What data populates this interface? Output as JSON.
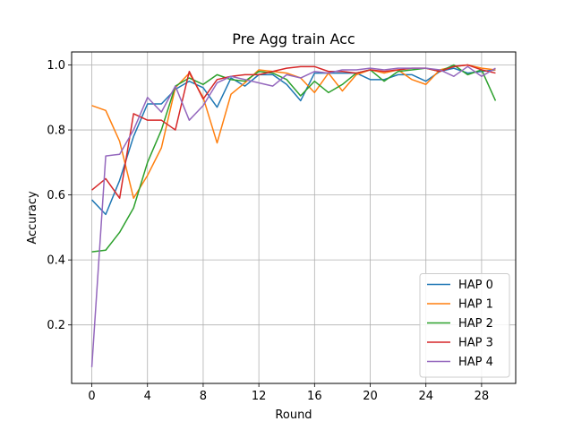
{
  "chart_data": {
    "type": "line",
    "title": "Pre Agg train Acc",
    "xlabel": "Round",
    "ylabel": "Accuracy",
    "xlim": [
      -1.45,
      30.45
    ],
    "ylim": [
      0.02,
      1.04
    ],
    "xticks": [
      0,
      4,
      8,
      12,
      16,
      20,
      24,
      28
    ],
    "yticks": [
      0.2,
      0.4,
      0.6,
      0.8,
      1.0
    ],
    "ytick_labels": [
      "0.2",
      "0.4",
      "0.6",
      "0.8",
      "1.0"
    ],
    "grid": true,
    "legend_position": "lower right",
    "x": [
      0,
      1,
      2,
      3,
      4,
      5,
      6,
      7,
      8,
      9,
      10,
      11,
      12,
      13,
      14,
      15,
      16,
      17,
      18,
      19,
      20,
      21,
      22,
      23,
      24,
      25,
      26,
      27,
      28,
      29
    ],
    "series": [
      {
        "name": "HAP 0",
        "color": "#1f77b4",
        "values": [
          0.585,
          0.54,
          0.645,
          0.78,
          0.88,
          0.88,
          0.925,
          0.95,
          0.93,
          0.87,
          0.96,
          0.935,
          0.97,
          0.97,
          0.94,
          0.89,
          0.975,
          0.975,
          0.975,
          0.975,
          0.955,
          0.955,
          0.97,
          0.97,
          0.95,
          0.98,
          0.99,
          0.975,
          0.98,
          0.985
        ]
      },
      {
        "name": "HAP 1",
        "color": "#ff7f0e",
        "values": [
          0.875,
          0.86,
          0.765,
          0.59,
          0.66,
          0.745,
          0.93,
          0.975,
          0.9,
          0.76,
          0.91,
          0.945,
          0.985,
          0.98,
          0.975,
          0.96,
          0.915,
          0.975,
          0.92,
          0.97,
          0.985,
          0.975,
          0.985,
          0.955,
          0.94,
          0.985,
          0.995,
          1.0,
          0.99,
          0.985
        ]
      },
      {
        "name": "HAP 2",
        "color": "#2ca02c",
        "values": [
          0.425,
          0.43,
          0.485,
          0.56,
          0.7,
          0.8,
          0.935,
          0.96,
          0.94,
          0.97,
          0.955,
          0.95,
          0.98,
          0.975,
          0.955,
          0.905,
          0.95,
          0.915,
          0.94,
          0.975,
          0.985,
          0.95,
          0.98,
          0.985,
          0.99,
          0.98,
          1.0,
          0.97,
          0.985,
          0.89
        ]
      },
      {
        "name": "HAP 3",
        "color": "#d62728",
        "values": [
          0.615,
          0.65,
          0.59,
          0.85,
          0.83,
          0.83,
          0.8,
          0.98,
          0.895,
          0.955,
          0.965,
          0.97,
          0.97,
          0.98,
          0.99,
          0.995,
          0.995,
          0.98,
          0.98,
          0.975,
          0.985,
          0.98,
          0.985,
          0.99,
          0.99,
          0.98,
          0.995,
          1.0,
          0.985,
          0.975
        ]
      },
      {
        "name": "HAP 4",
        "color": "#9467bd",
        "values": [
          0.07,
          0.72,
          0.725,
          0.8,
          0.9,
          0.855,
          0.935,
          0.83,
          0.875,
          0.945,
          0.965,
          0.955,
          0.945,
          0.935,
          0.97,
          0.96,
          0.98,
          0.975,
          0.985,
          0.985,
          0.99,
          0.985,
          0.99,
          0.99,
          0.99,
          0.985,
          0.965,
          0.995,
          0.965,
          0.99
        ]
      }
    ]
  }
}
